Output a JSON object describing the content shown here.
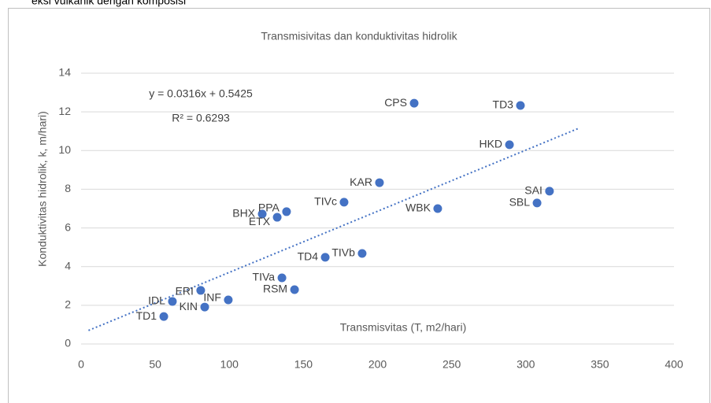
{
  "page_text": "eksi  vulkanik  dengan  komposisi",
  "chart_data": {
    "type": "scatter",
    "title": "Transmisivitas dan konduktivitas hidrolik",
    "x_label": "Transmisvitas (T, m2/hari)",
    "y_label": "Konduktivitas hidrolik, k, m/hari)",
    "color": "#4472c4",
    "series": [
      {
        "name": null,
        "color": "#4472c4",
        "labels": [
          "CPS",
          "TD3",
          "HKD",
          "KAR",
          "SAI",
          "SBL",
          "WBK",
          "TIVc",
          "BHX",
          "ETX",
          "PPA",
          "TD4",
          "TIVb",
          "TIVa",
          "RSM",
          "INF",
          "ERI",
          "IDL",
          "KIN",
          "TD1"
        ],
        "x": [
          224.7,
          296.4,
          289,
          201.3,
          316,
          307.6,
          240.6,
          177.4,
          122.2,
          132.3,
          138.6,
          164.7,
          189.6,
          135.5,
          144,
          99.3,
          80.7,
          61.6,
          83.4,
          55.8
        ],
        "values": [
          12.45,
          12.33,
          10.3,
          8.34,
          7.9,
          7.29,
          7.0,
          7.33,
          6.72,
          6.55,
          6.84,
          4.48,
          4.68,
          3.42,
          2.81,
          2.28,
          2.77,
          2.2,
          1.91,
          1.42
        ]
      }
    ],
    "trendline": {
      "equation": "y = 0.0316x + 0.5425",
      "r_squared": "R² = 0.6293",
      "slope": 0.0316,
      "intercept": 0.5425,
      "x_start": 5,
      "x_end": 336,
      "color": "#4472c4"
    },
    "xlim": [
      0,
      400
    ],
    "xticks": [
      0,
      50,
      100,
      150,
      200,
      250,
      300,
      350,
      400
    ],
    "ylim": [
      0,
      14
    ],
    "yticks": [
      0,
      2,
      4,
      6,
      8,
      10,
      12,
      14
    ],
    "grid": true
  }
}
